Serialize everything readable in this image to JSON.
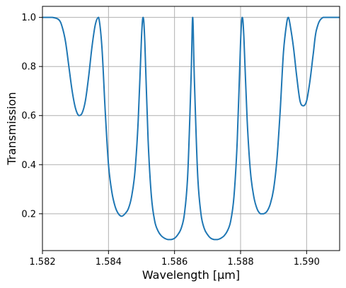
{
  "chart_data": {
    "type": "line",
    "title": "",
    "xlabel": "Wavelength  [μm]",
    "ylabel": "Transmission",
    "xlim": [
      1.582,
      1.591
    ],
    "ylim": [
      0.05,
      1.045
    ],
    "x_ticks": [
      "1.582",
      "1.584",
      "1.586",
      "1.588",
      "1.590"
    ],
    "x_tick_values": [
      1.582,
      1.584,
      1.586,
      1.588,
      1.59
    ],
    "y_ticks": [
      "0.2",
      "0.4",
      "0.6",
      "0.8",
      "1.0"
    ],
    "y_tick_values": [
      0.2,
      0.4,
      0.6,
      0.8,
      1.0
    ],
    "grid": true,
    "legend": "none",
    "series_color": "#1f77b4",
    "series": [
      {
        "x": [
          1.582,
          1.5823,
          1.5825,
          1.5826,
          1.5827,
          1.5828,
          1.5829,
          1.583,
          1.5831,
          1.5832,
          1.5833,
          1.5834,
          1.5835,
          1.5836,
          1.5837,
          1.5838,
          1.5839,
          1.584,
          1.5841,
          1.5842,
          1.5843,
          1.5844,
          1.5845,
          1.5846,
          1.5847,
          1.5848,
          1.5849,
          1.585,
          1.58505,
          1.5851,
          1.5852,
          1.5853,
          1.5854,
          1.5855,
          1.5856,
          1.5857,
          1.5858,
          1.5859,
          1.586,
          1.5861,
          1.5862,
          1.5863,
          1.5864,
          1.5865,
          1.58655,
          1.5866,
          1.5867,
          1.5868,
          1.5869,
          1.587,
          1.5871,
          1.5872,
          1.5873,
          1.5874,
          1.5875,
          1.5876,
          1.5877,
          1.5878,
          1.5879,
          1.588,
          1.58805,
          1.5881,
          1.5882,
          1.5883,
          1.5884,
          1.5885,
          1.5886,
          1.5887,
          1.5888,
          1.5889,
          1.589,
          1.5891,
          1.5892,
          1.5893,
          1.5894,
          1.58945,
          1.5895,
          1.5896,
          1.5897,
          1.5898,
          1.5899,
          1.59,
          1.5901,
          1.5902,
          1.5903,
          1.5905,
          1.591
        ],
        "y": [
          1.0,
          1.0,
          0.99,
          0.96,
          0.9,
          0.8,
          0.7,
          0.63,
          0.6,
          0.61,
          0.66,
          0.76,
          0.88,
          0.97,
          1.0,
          0.88,
          0.62,
          0.4,
          0.29,
          0.23,
          0.2,
          0.19,
          0.2,
          0.22,
          0.27,
          0.37,
          0.58,
          0.92,
          1.0,
          0.9,
          0.5,
          0.27,
          0.17,
          0.13,
          0.11,
          0.1,
          0.095,
          0.095,
          0.1,
          0.115,
          0.14,
          0.2,
          0.36,
          0.75,
          1.0,
          0.75,
          0.36,
          0.2,
          0.14,
          0.115,
          0.1,
          0.095,
          0.095,
          0.1,
          0.11,
          0.13,
          0.17,
          0.27,
          0.5,
          0.9,
          1.0,
          0.92,
          0.58,
          0.37,
          0.27,
          0.22,
          0.2,
          0.2,
          0.21,
          0.24,
          0.3,
          0.42,
          0.62,
          0.86,
          0.98,
          1.0,
          0.97,
          0.88,
          0.76,
          0.66,
          0.64,
          0.66,
          0.74,
          0.85,
          0.95,
          1.0,
          1.0
        ]
      }
    ]
  }
}
